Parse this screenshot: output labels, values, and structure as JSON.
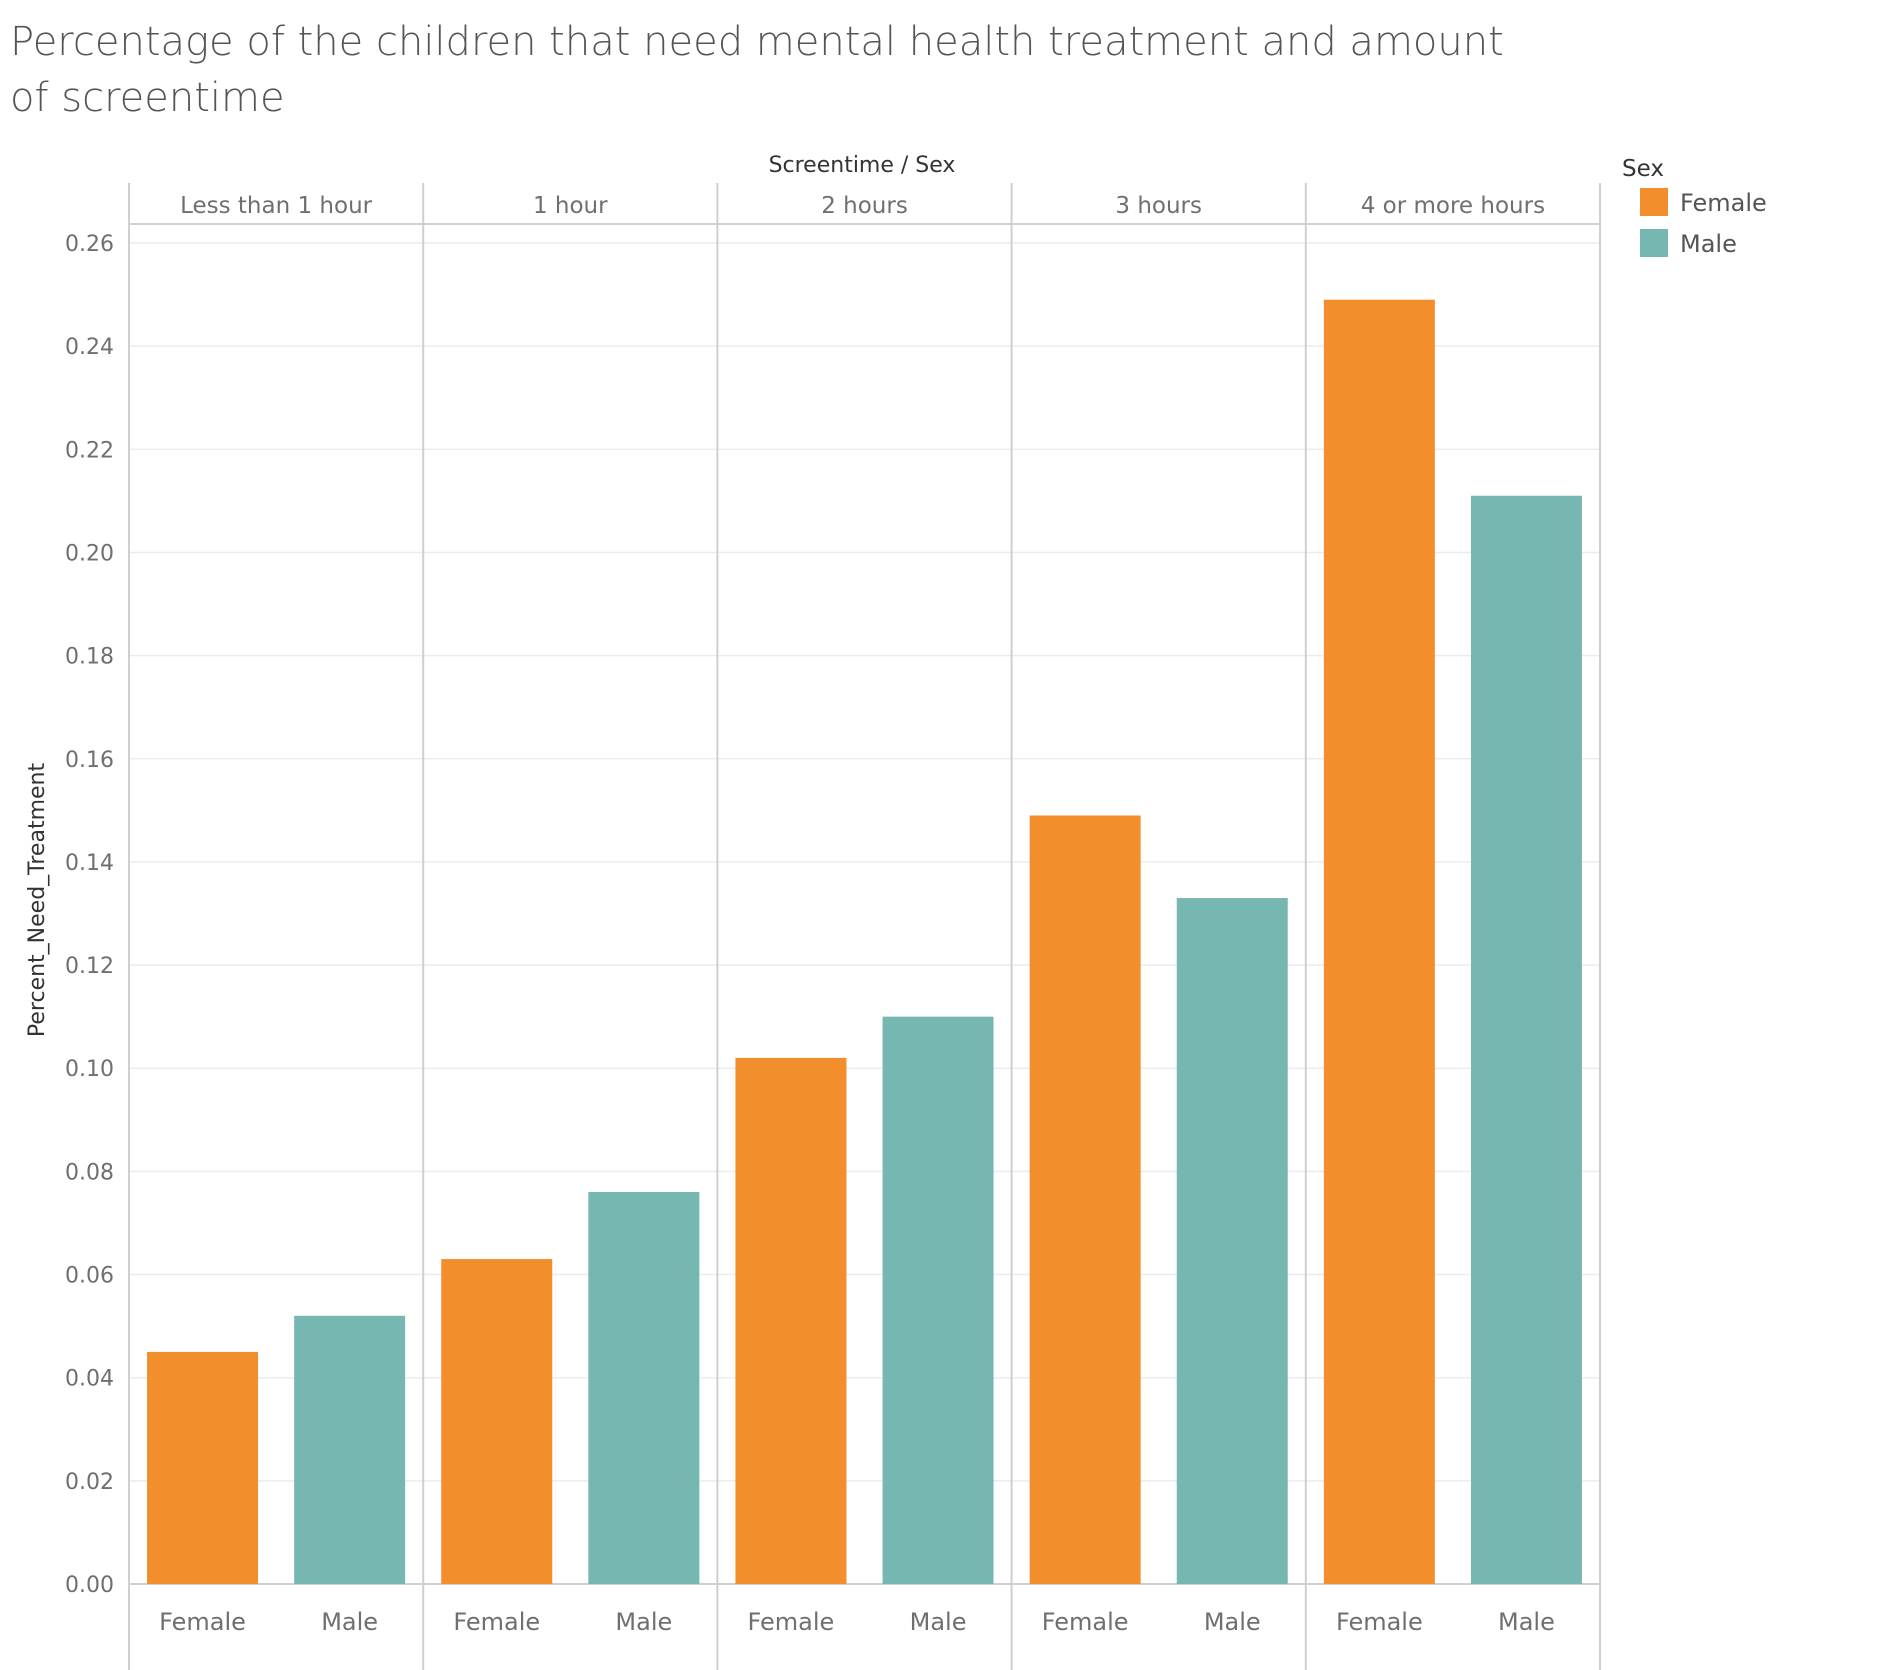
{
  "chart_data": {
    "type": "bar",
    "title": "Percentage of the children that need mental health treatment and amount of screentime",
    "column_header_title": "Screentime / Sex",
    "ylabel": "Percent_Need_Treatment",
    "ylim": [
      0,
      0.26
    ],
    "yticks": [
      "0.00",
      "0.02",
      "0.04",
      "0.06",
      "0.08",
      "0.10",
      "0.12",
      "0.14",
      "0.16",
      "0.18",
      "0.20",
      "0.22",
      "0.24",
      "0.26"
    ],
    "grid": true,
    "groups": [
      "Less than 1 hour",
      "1 hour",
      "2 hours",
      "3 hours",
      "4 or more hours"
    ],
    "sub_categories": [
      "Female",
      "Male"
    ],
    "series": [
      {
        "name": "Female",
        "color": "#F28E2B",
        "values": [
          0.045,
          0.063,
          0.102,
          0.149,
          0.249
        ]
      },
      {
        "name": "Male",
        "color": "#76B7B2",
        "values": [
          0.052,
          0.076,
          0.11,
          0.133,
          0.211
        ]
      }
    ],
    "legend": {
      "title": "Sex",
      "position": "top-right",
      "entries": [
        "Female",
        "Male"
      ]
    }
  }
}
